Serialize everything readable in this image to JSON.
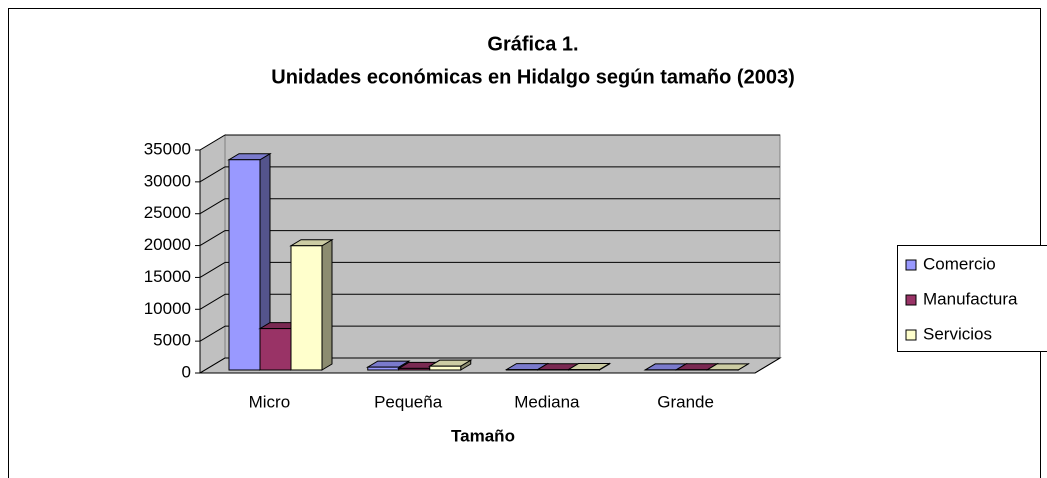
{
  "chart_data": {
    "type": "bar3d",
    "title": [
      "Gráfica 1.",
      "Unidades económicas en Hidalgo según tamaño (2003)"
    ],
    "x_label": "Tamaño",
    "categories": [
      "Micro",
      "Pequeña",
      "Mediana",
      "Grande"
    ],
    "series": [
      {
        "name": "Comercio",
        "color": "#9999ff",
        "values": [
          33000,
          450,
          60,
          15
        ]
      },
      {
        "name": "Manufactura",
        "color": "#993366",
        "values": [
          6500,
          250,
          40,
          30
        ]
      },
      {
        "name": "Servicios",
        "color": "#ffffcc",
        "values": [
          19500,
          600,
          70,
          20
        ]
      }
    ],
    "ylim": [
      0,
      35000
    ],
    "yticks": [
      0,
      5000,
      10000,
      15000,
      20000,
      25000,
      30000,
      35000
    ],
    "grid": true,
    "legend": "right"
  }
}
